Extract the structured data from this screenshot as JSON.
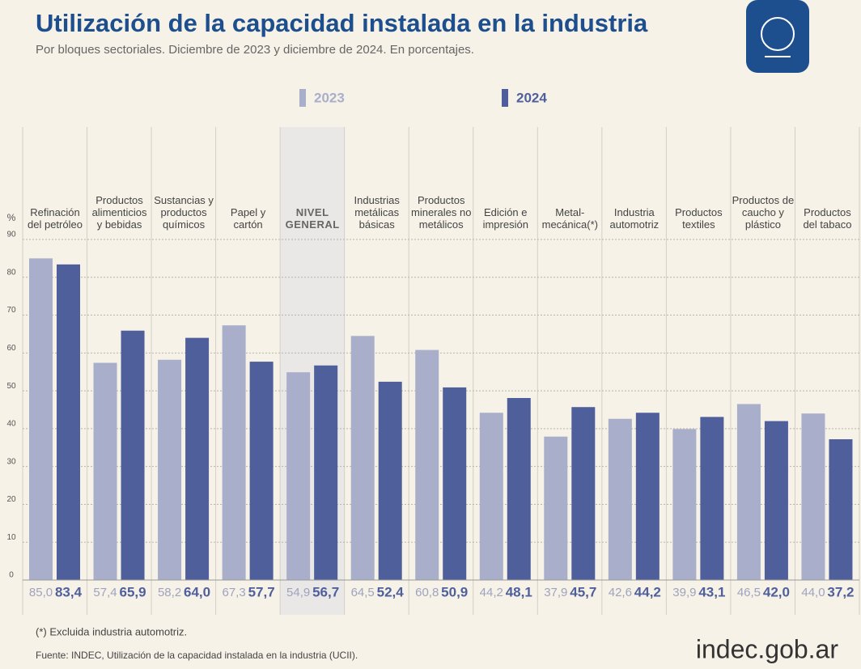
{
  "chart_data": {
    "type": "bar",
    "title": "Utilización de la capacidad instalada en la industria",
    "subtitle": "Por bloques sectoriales. Diciembre de 2023 y diciembre de 2024. En porcentajes.",
    "y_label": "%",
    "categories": [
      "Refinación del petróleo",
      "Productos alimenticios y bebidas",
      "Sustancias y productos químicos",
      "Papel y cartón",
      "NIVEL GENERAL",
      "Industrias metálicas básicas",
      "Productos minerales no metálicos",
      "Edición e impresión",
      "Metal-mecánica(*)",
      "Industria automotriz",
      "Productos textiles",
      "Productos de caucho y plástico",
      "Productos del tabaco"
    ],
    "series": [
      {
        "name": "2023",
        "color": "#a9aecb",
        "values": [
          85.0,
          57.4,
          58.2,
          67.3,
          54.9,
          64.5,
          60.8,
          44.2,
          37.9,
          42.6,
          39.9,
          46.5,
          44.0
        ],
        "value_labels": [
          "85,0",
          "57,4",
          "58,2",
          "67,3",
          "54,9",
          "64,5",
          "60,8",
          "44,2",
          "37,9",
          "42,6",
          "39,9",
          "46,5",
          "44,0"
        ]
      },
      {
        "name": "2024",
        "color": "#4f5f9b",
        "values": [
          83.4,
          65.9,
          64.0,
          57.7,
          56.7,
          52.4,
          50.9,
          48.1,
          45.7,
          44.2,
          43.1,
          42.0,
          37.2
        ],
        "value_labels": [
          "83,4",
          "65,9",
          "64,0",
          "57,7",
          "56,7",
          "52,4",
          "50,9",
          "48,1",
          "45,7",
          "44,2",
          "43,1",
          "42,0",
          "37,2"
        ]
      }
    ],
    "ylim": [
      0,
      90
    ],
    "yticks": [
      0,
      10,
      20,
      30,
      40,
      50,
      60,
      70,
      80,
      90
    ],
    "grid": true,
    "footnote": "(*) Excluida industria automotriz.",
    "source": "Fuente: INDEC, Utilización de la capacidad instalada en la industria (UCII).",
    "logo": "indec.gob.ar"
  }
}
